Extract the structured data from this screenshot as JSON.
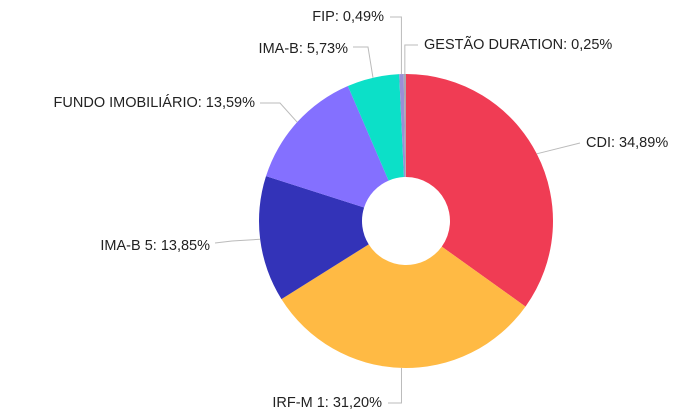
{
  "chart_data": {
    "type": "donut",
    "categories": [
      "CDI",
      "IRF-M 1",
      "IMA-B 5",
      "FUNDO IMOBILIÁRIO",
      "IMA-B",
      "FIP",
      "GESTÃO DURATION"
    ],
    "values": [
      34.89,
      31.2,
      13.85,
      13.59,
      5.73,
      0.49,
      0.25
    ],
    "value_labels": [
      "CDI: 34,89%",
      "IRF-M 1: 31,20%",
      "IMA-B 5: 13,85%",
      "FUNDO IMOBILIÁRIO: 13,59%",
      "IMA-B: 5,73%",
      "FIP: 0,49%",
      "GESTÃO DURATION: 0,25%"
    ],
    "colors": [
      "#f03c54",
      "#ffba44",
      "#3333b8",
      "#8470ff",
      "#0ce0c8",
      "#9b8fd6",
      "#a8a8b0"
    ]
  }
}
